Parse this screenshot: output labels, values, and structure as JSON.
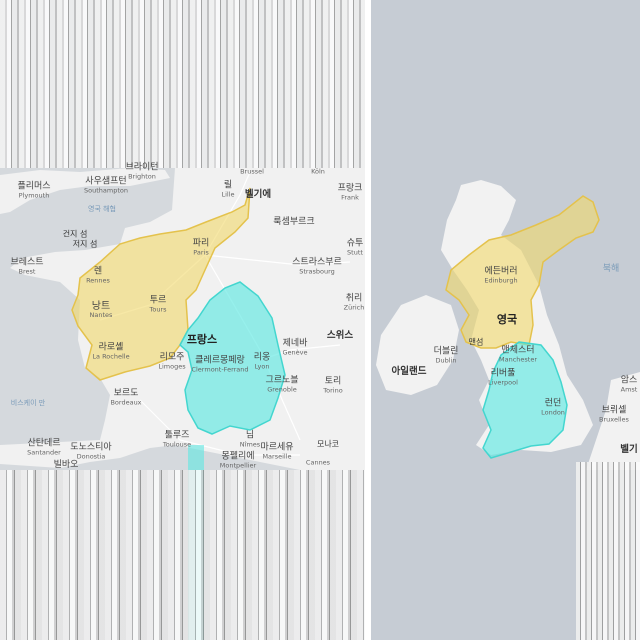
{
  "left_map": {
    "labels": [
      {
        "key": "brussel",
        "ko": "",
        "en": "Brussel"
      },
      {
        "key": "belgium",
        "ko": "벨기에",
        "en": ""
      },
      {
        "key": "koln",
        "ko": "",
        "en": "Köln"
      },
      {
        "key": "frankfurt",
        "ko": "프랑크",
        "en": "Frank"
      },
      {
        "key": "luxembourg",
        "ko": "룩셈부르크",
        "en": ""
      },
      {
        "key": "plymouth",
        "ko": "플리머스",
        "en": "Plymouth"
      },
      {
        "key": "southampton",
        "ko": "사우샘프턴",
        "en": "Southampton"
      },
      {
        "key": "brighton",
        "ko": "브라이턴",
        "en": "Brighton"
      },
      {
        "key": "lille",
        "ko": "릴",
        "en": "Lille"
      },
      {
        "key": "channel",
        "ko": "영국 해협",
        "en": ""
      },
      {
        "key": "jersey",
        "ko": "건지 섬",
        "en": ""
      },
      {
        "key": "jersey2",
        "ko": "저지 섬",
        "en": ""
      },
      {
        "key": "paris",
        "ko": "파리",
        "en": "Paris"
      },
      {
        "key": "brest",
        "ko": "브레스트",
        "en": "Brest"
      },
      {
        "key": "rennes",
        "ko": "렌",
        "en": "Rennes"
      },
      {
        "key": "strasbourg",
        "ko": "스트라스부르",
        "en": "Strasbourg"
      },
      {
        "key": "stutt",
        "ko": "슈투",
        "en": "Stutt"
      },
      {
        "key": "zurich",
        "ko": "취리",
        "en": "Zürich"
      },
      {
        "key": "nantes",
        "ko": "낭트",
        "en": "Nantes"
      },
      {
        "key": "tours",
        "ko": "투르",
        "en": "Tours"
      },
      {
        "key": "lyon",
        "ko": "리옹",
        "en": "Lyon"
      },
      {
        "key": "clermont",
        "ko": "클레르몽페랑",
        "en": "Clermont-Ferrand"
      },
      {
        "key": "geneve",
        "ko": "제네바",
        "en": "Genève"
      },
      {
        "key": "switzerland",
        "ko": "스위스",
        "en": ""
      },
      {
        "key": "larochelle",
        "ko": "라로셸",
        "en": "La Rochelle"
      },
      {
        "key": "limoges",
        "ko": "리모주",
        "en": "Limoges"
      },
      {
        "key": "france",
        "ko": "프랑스",
        "en": ""
      },
      {
        "key": "grenoble",
        "ko": "그르노블",
        "en": "Grenoble"
      },
      {
        "key": "torino",
        "ko": "토리",
        "en": "Torino"
      },
      {
        "key": "bordeaux",
        "ko": "보르도",
        "en": "Bordeaux"
      },
      {
        "key": "biscay",
        "ko": "비스케이 만",
        "en": ""
      },
      {
        "key": "toulouse",
        "ko": "툴루즈",
        "en": "Toulouse"
      },
      {
        "key": "nimes",
        "ko": "님",
        "en": "Nîmes"
      },
      {
        "key": "marseille",
        "ko": "마르세유",
        "en": "Marseille"
      },
      {
        "key": "monaco",
        "ko": "모나코",
        "en": ""
      },
      {
        "key": "montpellier",
        "ko": "몽펠리에",
        "en": "Montpellier"
      },
      {
        "key": "cannes",
        "ko": "",
        "en": "Cannes"
      },
      {
        "key": "santander",
        "ko": "산탄데르",
        "en": "Santander"
      },
      {
        "key": "donostia",
        "ko": "도노스티아",
        "en": "Donostia"
      },
      {
        "key": "bilbao",
        "ko": "빌바오",
        "en": ""
      }
    ]
  },
  "right_map": {
    "labels": [
      {
        "key": "north_sea",
        "ko": "북해",
        "en": ""
      },
      {
        "key": "edinburgh",
        "ko": "에든버러",
        "en": "Edinburgh"
      },
      {
        "key": "uk",
        "ko": "영국",
        "en": ""
      },
      {
        "key": "ireland",
        "ko": "아일랜드",
        "en": ""
      },
      {
        "key": "dublin",
        "ko": "더블린",
        "en": "Dublin"
      },
      {
        "key": "isle_of_man",
        "ko": "맨섬",
        "en": ""
      },
      {
        "key": "manchester",
        "ko": "맨체스터",
        "en": "Manchester"
      },
      {
        "key": "liverpool",
        "ko": "리버풀",
        "en": "Liverpool"
      },
      {
        "key": "london",
        "ko": "런던",
        "en": "London"
      },
      {
        "key": "amsterdam",
        "ko": "암스",
        "en": "Amst"
      },
      {
        "key": "brussels",
        "ko": "브뤼셀",
        "en": "Bruxelles"
      },
      {
        "key": "belgium2",
        "ko": "벨기",
        "en": ""
      }
    ]
  },
  "colors": {
    "north_overlay": "#f2d86b",
    "south_overlay": "#5fe8e2",
    "land": "#f1f1f1",
    "sea_left": "#d5d9dd",
    "sea_right": "#c6ccd4"
  }
}
